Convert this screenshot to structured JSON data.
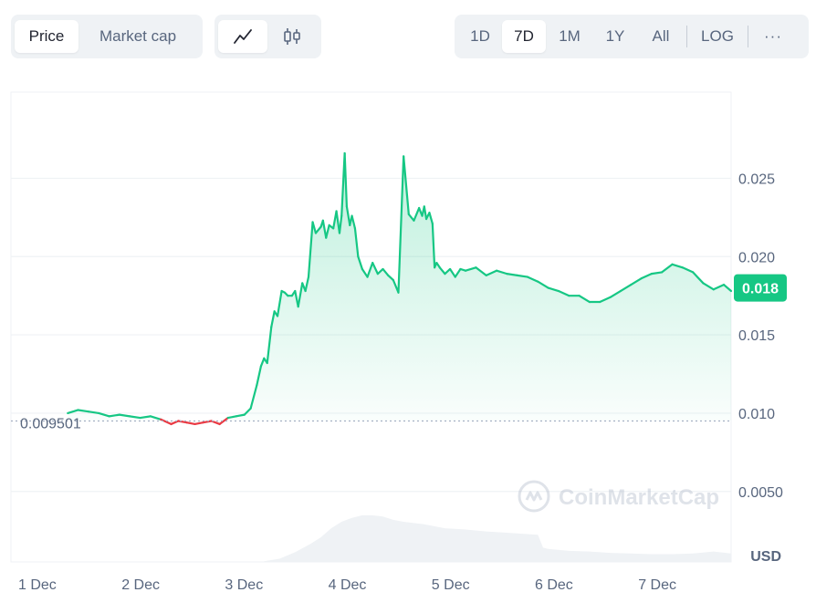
{
  "controls": {
    "metric_tabs": [
      {
        "label": "Price",
        "active": true
      },
      {
        "label": "Market cap",
        "active": false
      }
    ],
    "chart_types": [
      {
        "icon": "line-chart-icon",
        "active": true
      },
      {
        "icon": "candlestick-icon",
        "active": false
      }
    ],
    "ranges": [
      {
        "label": "1D",
        "active": false
      },
      {
        "label": "7D",
        "active": true
      },
      {
        "label": "1M",
        "active": false
      },
      {
        "label": "1Y",
        "active": false
      },
      {
        "label": "All",
        "active": false
      }
    ],
    "log_label": "LOG",
    "more_label": "···"
  },
  "chart_data": {
    "type": "line",
    "title": "",
    "xlabel": "",
    "ylabel": "",
    "currency_label": "USD",
    "watermark": "CoinMarketCap",
    "x_ticks": [
      "1 Dec",
      "2 Dec",
      "3 Dec",
      "4 Dec",
      "5 Dec",
      "6 Dec",
      "7 Dec"
    ],
    "y_ticks": [
      "0.025",
      "0.020",
      "0.015",
      "0.010",
      "0.0050"
    ],
    "y_tick_values": [
      0.025,
      0.02,
      0.015,
      0.01,
      0.005
    ],
    "ylim": [
      0.0005,
      0.0305
    ],
    "xlim": [
      0,
      6.97
    ],
    "reference_price": 0.009501,
    "reference_label": "0.009501",
    "current_price": 0.018,
    "current_label": "0.018",
    "colors": {
      "up": "#16c784",
      "down": "#ea3943",
      "grid": "#eff2f5"
    },
    "series": [
      {
        "x": [
          0.55,
          0.65,
          0.75,
          0.85,
          0.95,
          1.05,
          1.15,
          1.25,
          1.35,
          1.45,
          1.55,
          1.62,
          1.7,
          1.78,
          1.86,
          1.94,
          2.02,
          2.1,
          2.18,
          2.26,
          2.32,
          2.38,
          2.42,
          2.45,
          2.48,
          2.52,
          2.55,
          2.58,
          2.62,
          2.65,
          2.68,
          2.72,
          2.75,
          2.78,
          2.82,
          2.85,
          2.88,
          2.92,
          2.95,
          3.0,
          3.02,
          3.05,
          3.08,
          3.12,
          3.15,
          3.18,
          3.2,
          3.23,
          3.25,
          3.28,
          3.3,
          3.33,
          3.36,
          3.4,
          3.45,
          3.5,
          3.55,
          3.6,
          3.65,
          3.7,
          3.75,
          3.8,
          3.85,
          3.9,
          3.95,
          3.98,
          4.0,
          4.02,
          4.05,
          4.08,
          4.1,
          4.12,
          4.15,
          4.2,
          4.25,
          4.3,
          4.35,
          4.4,
          4.5,
          4.6,
          4.7,
          4.8,
          4.9,
          5.0,
          5.1,
          5.2,
          5.3,
          5.4,
          5.5,
          5.6,
          5.7,
          5.8,
          5.9,
          6.0,
          6.1,
          6.2,
          6.3,
          6.4,
          6.5,
          6.6,
          6.7,
          6.8,
          6.9,
          6.97
        ],
        "y": [
          0.01,
          0.0102,
          0.0101,
          0.01,
          0.0098,
          0.0099,
          0.0098,
          0.0097,
          0.0098,
          0.0096,
          0.0093,
          0.0095,
          0.0094,
          0.0093,
          0.0094,
          0.0095,
          0.0093,
          0.0097,
          0.0098,
          0.0099,
          0.0103,
          0.0118,
          0.013,
          0.0135,
          0.0132,
          0.0155,
          0.0165,
          0.0162,
          0.0178,
          0.0177,
          0.0175,
          0.0175,
          0.0178,
          0.0168,
          0.0183,
          0.0178,
          0.0187,
          0.0222,
          0.0215,
          0.0219,
          0.0223,
          0.0212,
          0.022,
          0.0218,
          0.0229,
          0.0215,
          0.0226,
          0.0266,
          0.0232,
          0.022,
          0.0226,
          0.0218,
          0.02,
          0.0192,
          0.0187,
          0.0196,
          0.0189,
          0.0192,
          0.0188,
          0.0185,
          0.0177,
          0.0264,
          0.0227,
          0.0223,
          0.0231,
          0.0226,
          0.0232,
          0.0224,
          0.0228,
          0.0221,
          0.0193,
          0.0196,
          0.0193,
          0.0189,
          0.0192,
          0.0187,
          0.0192,
          0.0191,
          0.0193,
          0.0188,
          0.0191,
          0.0189,
          0.0188,
          0.0187,
          0.0184,
          0.018,
          0.0178,
          0.0175,
          0.0175,
          0.0171,
          0.0171,
          0.0174,
          0.0178,
          0.0182,
          0.0186,
          0.0189,
          0.019,
          0.0195,
          0.0193,
          0.019,
          0.0183,
          0.0179,
          0.0182,
          0.0178
        ]
      }
    ],
    "volume": {
      "x": [
        2.45,
        2.6,
        2.75,
        2.9,
        3.0,
        3.1,
        3.2,
        3.3,
        3.4,
        3.5,
        3.6,
        3.7,
        3.8,
        3.9,
        4.0,
        4.2,
        4.4,
        4.6,
        4.8,
        5.0,
        5.1,
        5.15,
        5.2,
        5.4,
        5.6,
        5.8,
        6.0,
        6.2,
        6.4,
        6.6,
        6.8,
        6.97
      ],
      "y": [
        0.01,
        0.05,
        0.15,
        0.28,
        0.38,
        0.52,
        0.62,
        0.68,
        0.72,
        0.72,
        0.7,
        0.65,
        0.62,
        0.6,
        0.58,
        0.52,
        0.5,
        0.47,
        0.45,
        0.43,
        0.42,
        0.22,
        0.2,
        0.17,
        0.16,
        0.14,
        0.13,
        0.12,
        0.12,
        0.13,
        0.16,
        0.13
      ]
    }
  }
}
